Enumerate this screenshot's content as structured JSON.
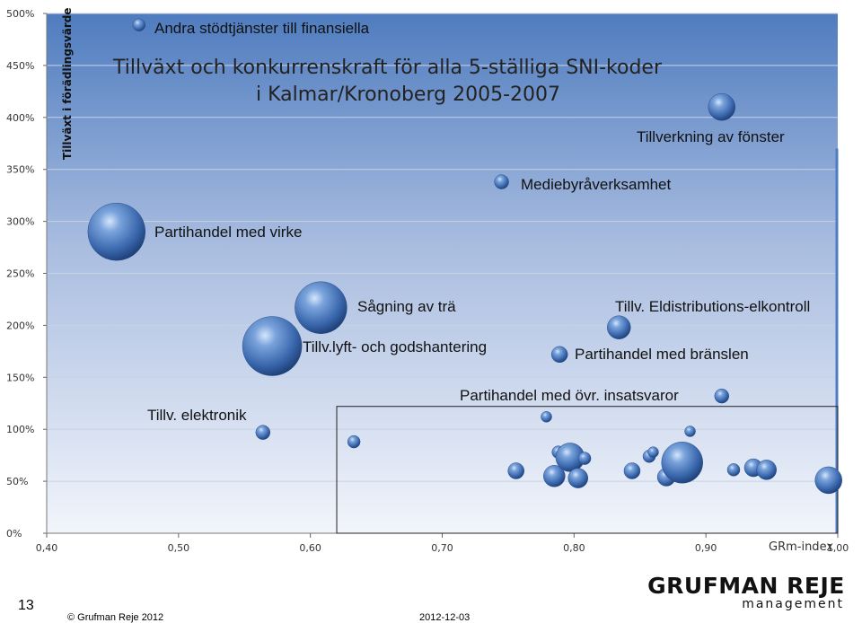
{
  "chart_data": {
    "type": "scatter",
    "title": [
      "Tillväxt och konkurrenskraft för alla 5-ställiga SNI-koder",
      "i Kalmar/Kronoberg 2005-2007"
    ],
    "xlabel": "GRm-index",
    "ylabel": "Tillväxt i förädlingsvärde",
    "xlim": [
      0.4,
      1.0
    ],
    "ylim": [
      0,
      5.0
    ],
    "x_ticks": [
      "0,40",
      "0,50",
      "0,60",
      "0,70",
      "0,80",
      "0,90",
      "1,00"
    ],
    "y_ticks": [
      "0%",
      "50%",
      "100%",
      "150%",
      "200%",
      "250%",
      "300%",
      "350%",
      "400%",
      "450%",
      "500%"
    ],
    "grid": "horizontal",
    "bubble_color": "#4a78b8",
    "points": [
      {
        "x": 0.47,
        "y": 4.89,
        "size": 7,
        "label": "Andra stödtjänster till finansiella"
      },
      {
        "x": 0.912,
        "y": 4.1,
        "size": 15,
        "label": "Tillverkning av fönster"
      },
      {
        "x": 0.745,
        "y": 3.38,
        "size": 8,
        "label": "Mediebyråverksamhet"
      },
      {
        "x": 0.453,
        "y": 2.9,
        "size": 32,
        "label": "Partihandel med virke"
      },
      {
        "x": 0.608,
        "y": 2.17,
        "size": 29,
        "label": "Sågning av trä"
      },
      {
        "x": 0.571,
        "y": 1.8,
        "size": 33,
        "label": "Tillv.lyft- och godshantering"
      },
      {
        "x": 0.834,
        "y": 1.98,
        "size": 13,
        "label": "Tillv. Eldistributions-elkontroll"
      },
      {
        "x": 0.789,
        "y": 1.72,
        "size": 9,
        "label": "Partihandel med bränslen"
      },
      {
        "x": 0.912,
        "y": 1.32,
        "size": 8,
        "label": "Partihandel med övr. insatsvaror"
      },
      {
        "x": 0.564,
        "y": 0.97,
        "size": 8,
        "label": "Tillv. elektronik"
      },
      {
        "x": 0.633,
        "y": 0.88,
        "size": 7,
        "label": ""
      },
      {
        "x": 0.779,
        "y": 1.12,
        "size": 6,
        "label": ""
      },
      {
        "x": 0.756,
        "y": 0.6,
        "size": 9,
        "label": ""
      },
      {
        "x": 0.788,
        "y": 0.78,
        "size": 7,
        "label": ""
      },
      {
        "x": 0.785,
        "y": 0.55,
        "size": 12,
        "label": ""
      },
      {
        "x": 0.797,
        "y": 0.73,
        "size": 16,
        "label": ""
      },
      {
        "x": 0.803,
        "y": 0.53,
        "size": 11,
        "label": ""
      },
      {
        "x": 0.808,
        "y": 0.72,
        "size": 7,
        "label": ""
      },
      {
        "x": 0.844,
        "y": 0.6,
        "size": 9,
        "label": ""
      },
      {
        "x": 0.857,
        "y": 0.74,
        "size": 7,
        "label": ""
      },
      {
        "x": 0.86,
        "y": 0.78,
        "size": 6,
        "label": ""
      },
      {
        "x": 0.87,
        "y": 0.54,
        "size": 10,
        "label": ""
      },
      {
        "x": 0.882,
        "y": 0.68,
        "size": 23,
        "label": ""
      },
      {
        "x": 0.888,
        "y": 0.98,
        "size": 6,
        "label": ""
      },
      {
        "x": 0.921,
        "y": 0.61,
        "size": 7,
        "label": ""
      },
      {
        "x": 0.936,
        "y": 0.63,
        "size": 10,
        "label": ""
      },
      {
        "x": 0.946,
        "y": 0.61,
        "size": 11,
        "label": ""
      },
      {
        "x": 0.993,
        "y": 0.51,
        "size": 15,
        "label": ""
      }
    ],
    "highlight_region": {
      "x": [
        0.62,
        1.0
      ],
      "y": [
        0,
        1.22
      ]
    }
  },
  "footer": {
    "slide_number": "13",
    "copyright": "© Grufman Reje 2012",
    "date": "2012-12-03"
  },
  "logo": {
    "brand": "GRUFMAN REJE",
    "sub": "management"
  }
}
